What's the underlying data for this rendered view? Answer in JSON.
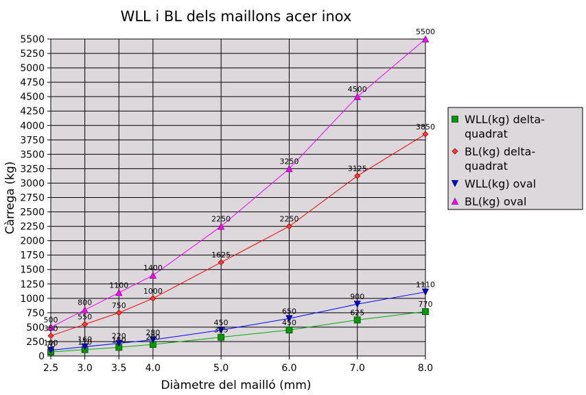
{
  "chart_data": {
    "type": "line",
    "title": "WLL i BL dels maillons acer inox",
    "xlabel": "Diàmetre del mailló (mm)",
    "ylabel": "Càrrega (kg)",
    "x": [
      2.5,
      3.0,
      3.5,
      4.0,
      5.0,
      6.0,
      7.0,
      8.0
    ],
    "x_tick_labels": [
      "2.5",
      "3.0",
      "3.5",
      "4.0",
      "5.0",
      "6.0",
      "7.0",
      "8.0"
    ],
    "ylim": [
      0,
      5500
    ],
    "y_tick_labels": [
      "0",
      "250",
      "500",
      "750",
      "1000",
      "1250",
      "1500",
      "1750",
      "2000",
      "2250",
      "2500",
      "2750",
      "3000",
      "3250",
      "3500",
      "3750",
      "4000",
      "4250",
      "4500",
      "4750",
      "5000",
      "5250",
      "5500"
    ],
    "grid": true,
    "legend_position": "right",
    "plot_background": "#dcd8dc",
    "series": [
      {
        "name": "WLL(kg) delta-quadrat",
        "legend_lines": [
          "WLL(kg) delta-",
          "quadrat"
        ],
        "color": "#009900",
        "line_color": "#00aa00",
        "marker": "square",
        "values": [
          70,
          110,
          150,
          200,
          325,
          450,
          625,
          770
        ],
        "labels": [
          "70",
          "110",
          "150",
          "200",
          "325",
          "450",
          "625",
          "770"
        ]
      },
      {
        "name": "BL(kg) delta-quadrat",
        "legend_lines": [
          "BL(kg) delta-",
          "quadrat"
        ],
        "color": "#ff3b30",
        "line_color": "#ff0000",
        "marker": "diamond",
        "values": [
          350,
          550,
          750,
          1000,
          1625,
          2250,
          3125,
          3850
        ],
        "labels": [
          "350",
          "550",
          "750",
          "1000",
          "1625",
          "2250",
          "3125",
          "3850"
        ]
      },
      {
        "name": "WLL(kg) oval",
        "legend_lines": [
          "WLL(kg) oval"
        ],
        "color": "#0000cc",
        "line_color": "#0000ff",
        "marker": "triangle-down",
        "values": [
          100,
          160,
          220,
          280,
          450,
          650,
          900,
          1110
        ],
        "labels": [
          "100",
          "160",
          "220",
          "280",
          "450",
          "650",
          "900",
          "1110"
        ]
      },
      {
        "name": "BL(kg) oval",
        "legend_lines": [
          "BL(kg) oval"
        ],
        "color": "#ff00ff",
        "line_color": "#ff00ff",
        "marker": "triangle-up",
        "values": [
          500,
          800,
          1100,
          1400,
          2250,
          3250,
          4500,
          5500
        ],
        "labels": [
          "500",
          "800",
          "1100",
          "1400",
          "2250",
          "3250",
          "4500",
          "5500"
        ]
      }
    ]
  }
}
